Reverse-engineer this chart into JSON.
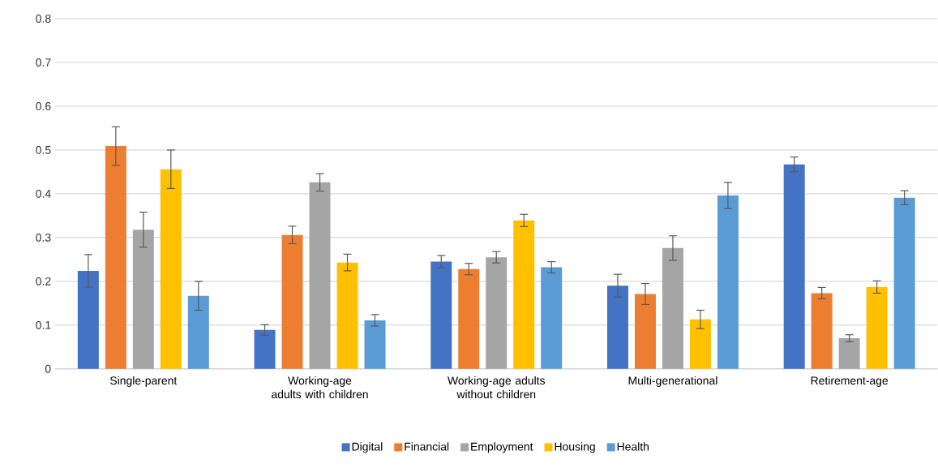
{
  "chart_data": {
    "type": "bar",
    "categories": [
      "Single-parent",
      "Working-age adults with children",
      "Working-age adults without children",
      "Multi-generational",
      "Retirement-age"
    ],
    "series": [
      {
        "name": "Digital",
        "color": "#4472c4",
        "values": [
          0.224,
          0.089,
          0.245,
          0.19,
          0.467
        ],
        "errors": [
          0.037,
          0.012,
          0.014,
          0.026,
          0.017
        ]
      },
      {
        "name": "Financial",
        "color": "#ed7d31",
        "values": [
          0.509,
          0.306,
          0.228,
          0.171,
          0.173
        ],
        "errors": [
          0.044,
          0.02,
          0.013,
          0.024,
          0.013
        ]
      },
      {
        "name": "Employment",
        "color": "#a5a5a5",
        "values": [
          0.318,
          0.426,
          0.255,
          0.276,
          0.07
        ],
        "errors": [
          0.04,
          0.02,
          0.013,
          0.028,
          0.008
        ]
      },
      {
        "name": "Housing",
        "color": "#ffc000",
        "values": [
          0.456,
          0.243,
          0.339,
          0.113,
          0.187
        ],
        "errors": [
          0.044,
          0.019,
          0.014,
          0.021,
          0.014
        ]
      },
      {
        "name": "Health",
        "color": "#5b9bd5",
        "values": [
          0.167,
          0.111,
          0.232,
          0.396,
          0.391
        ],
        "errors": [
          0.033,
          0.013,
          0.013,
          0.03,
          0.016
        ]
      }
    ],
    "ylim": [
      0,
      0.8
    ],
    "yticks": [
      0,
      0.1,
      0.2,
      0.3,
      0.4,
      0.5,
      0.6,
      0.7,
      0.8
    ],
    "grid": "y",
    "legend": "bottom"
  }
}
